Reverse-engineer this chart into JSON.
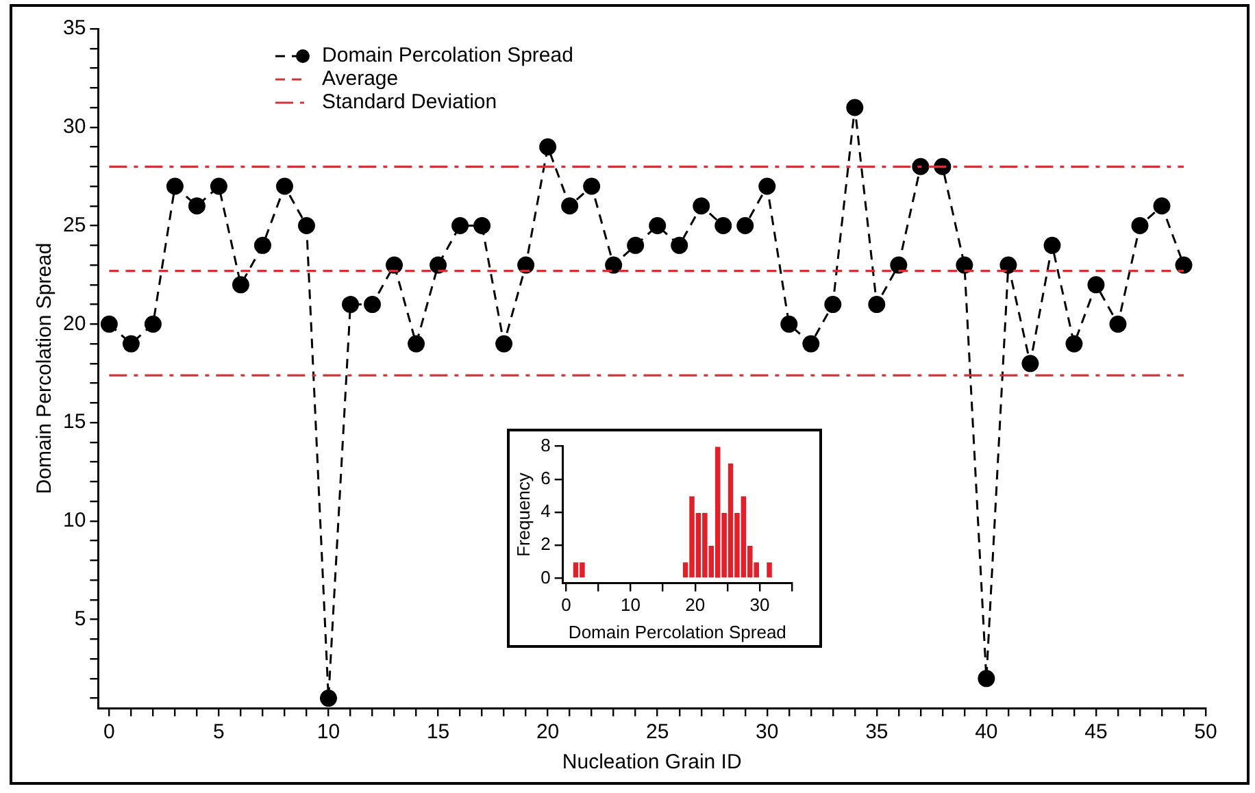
{
  "chart_data": [
    {
      "type": "line",
      "xlabel": "Nucleation Grain ID",
      "ylabel": "Domain Percolation Spread",
      "x": [
        0,
        1,
        2,
        3,
        4,
        5,
        6,
        7,
        8,
        9,
        10,
        11,
        12,
        13,
        14,
        15,
        16,
        17,
        18,
        19,
        20,
        21,
        22,
        23,
        24,
        25,
        26,
        27,
        28,
        29,
        30,
        31,
        32,
        33,
        34,
        35,
        36,
        37,
        38,
        39,
        40,
        41,
        42,
        43,
        44,
        45,
        46,
        47,
        48,
        49
      ],
      "series": [
        {
          "name": "Domain Percolation Spread",
          "color": "#000000",
          "values": [
            20,
            19,
            20,
            27,
            26,
            27,
            22,
            24,
            27,
            25,
            1,
            21,
            21,
            23,
            19,
            23,
            25,
            25,
            19,
            23,
            29,
            26,
            27,
            23,
            24,
            25,
            24,
            26,
            25,
            25,
            27,
            20,
            19,
            21,
            31,
            21,
            23,
            28,
            28,
            23,
            2,
            23,
            18,
            24,
            19,
            22,
            20,
            25,
            26,
            23
          ]
        }
      ],
      "marker": "circle",
      "line_style": "dashed",
      "grid": false,
      "legend": "top left",
      "xlim": [
        -0.5,
        50
      ],
      "ylim": [
        0.5,
        35
      ],
      "xticks": [
        0,
        {
          "value": 1,
          "label": null
        },
        {
          "value": 2,
          "label": null
        },
        {
          "value": 3,
          "label": null
        },
        {
          "value": 4,
          "label": null
        },
        5,
        {
          "value": 6,
          "label": null
        },
        {
          "value": 7,
          "label": null
        },
        {
          "value": 8,
          "label": null
        },
        {
          "value": 9,
          "label": null
        },
        10,
        {
          "value": 11,
          "label": null
        },
        {
          "value": 12,
          "label": null
        },
        {
          "value": 13,
          "label": null
        },
        {
          "value": 14,
          "label": null
        },
        15,
        {
          "value": 16,
          "label": null
        },
        {
          "value": 17,
          "label": null
        },
        {
          "value": 18,
          "label": null
        },
        {
          "value": 19,
          "label": null
        },
        20,
        {
          "value": 21,
          "label": null
        },
        {
          "value": 22,
          "label": null
        },
        {
          "value": 23,
          "label": null
        },
        {
          "value": 24,
          "label": null
        },
        25,
        {
          "value": 26,
          "label": null
        },
        {
          "value": 27,
          "label": null
        },
        {
          "value": 28,
          "label": null
        },
        {
          "value": 29,
          "label": null
        },
        30,
        {
          "value": 31,
          "label": null
        },
        {
          "value": 32,
          "label": null
        },
        {
          "value": 33,
          "label": null
        },
        {
          "value": 34,
          "label": null
        },
        35,
        {
          "value": 36,
          "label": null
        },
        {
          "value": 37,
          "label": null
        },
        {
          "value": 38,
          "label": null
        },
        {
          "value": 39,
          "label": null
        },
        40,
        {
          "value": 41,
          "label": null
        },
        {
          "value": 42,
          "label": null
        },
        {
          "value": 43,
          "label": null
        },
        {
          "value": 44,
          "label": null
        },
        45,
        {
          "value": 46,
          "label": null
        },
        {
          "value": 47,
          "label": null
        },
        {
          "value": 48,
          "label": null
        },
        {
          "value": 49,
          "label": null
        },
        50
      ],
      "yticks": [
        {
          "value": 1,
          "label": null
        },
        {
          "value": 2,
          "label": null
        },
        {
          "value": 3,
          "label": null
        },
        {
          "value": 4,
          "label": null
        },
        5,
        {
          "value": 6,
          "label": null
        },
        {
          "value": 7,
          "label": null
        },
        {
          "value": 8,
          "label": null
        },
        {
          "value": 9,
          "label": null
        },
        10,
        {
          "value": 11,
          "label": null
        },
        {
          "value": 12,
          "label": null
        },
        {
          "value": 13,
          "label": null
        },
        {
          "value": 14,
          "label": null
        },
        15,
        {
          "value": 16,
          "label": null
        },
        {
          "value": 17,
          "label": null
        },
        {
          "value": 18,
          "label": null
        },
        {
          "value": 19,
          "label": null
        },
        20,
        {
          "value": 21,
          "label": null
        },
        {
          "value": 22,
          "label": null
        },
        {
          "value": 23,
          "label": null
        },
        {
          "value": 24,
          "label": null
        },
        25,
        {
          "value": 26,
          "label": null
        },
        {
          "value": 27,
          "label": null
        },
        {
          "value": 28,
          "label": null
        },
        {
          "value": 29,
          "label": null
        },
        30,
        {
          "value": 31,
          "label": null
        },
        {
          "value": 32,
          "label": null
        },
        {
          "value": 33,
          "label": null
        },
        {
          "value": 34,
          "label": null
        },
        35
      ],
      "ref_lines": [
        {
          "axis": "y",
          "value": 22.7,
          "label": "Average",
          "color": "#d0343a",
          "line_style": "dashed"
        },
        {
          "axis": "y",
          "value": 28,
          "label": "Standard Deviation",
          "color": "#d0343a",
          "line_style": "dashdot"
        },
        {
          "axis": "y",
          "value": 17.4,
          "color": "#d0343a",
          "line_style": "dashdot"
        }
      ]
    },
    {
      "type": "histogram",
      "xlabel": "Domain Percolation Spread",
      "ylabel": "Frequency",
      "color": "#e0202a",
      "grid": false,
      "bins": [
        0,
        1,
        2,
        3,
        4,
        5,
        6,
        7,
        8,
        9,
        10,
        11,
        12,
        13,
        14,
        15,
        16,
        17,
        18,
        19,
        20,
        21,
        22,
        23,
        24,
        25,
        26,
        27,
        28,
        29,
        30,
        31,
        32,
        33,
        34,
        35
      ],
      "values": [
        0,
        1,
        1,
        0,
        0,
        0,
        0,
        0,
        0,
        0,
        0,
        0,
        0,
        0,
        0,
        0,
        0,
        0,
        1,
        5,
        4,
        4,
        2,
        8,
        4,
        7,
        4,
        5,
        2,
        1,
        0,
        1,
        0,
        0,
        0
      ],
      "xlim": [
        -0.5,
        35
      ],
      "ylim": [
        -0.3,
        8
      ],
      "xticks": [
        0,
        {
          "value": 5,
          "label": null
        },
        10,
        {
          "value": 15,
          "label": null
        },
        20,
        {
          "value": 25,
          "label": null
        },
        30,
        {
          "value": 35,
          "label": null
        }
      ],
      "yticks": [
        0,
        2,
        4,
        6,
        8
      ]
    }
  ]
}
